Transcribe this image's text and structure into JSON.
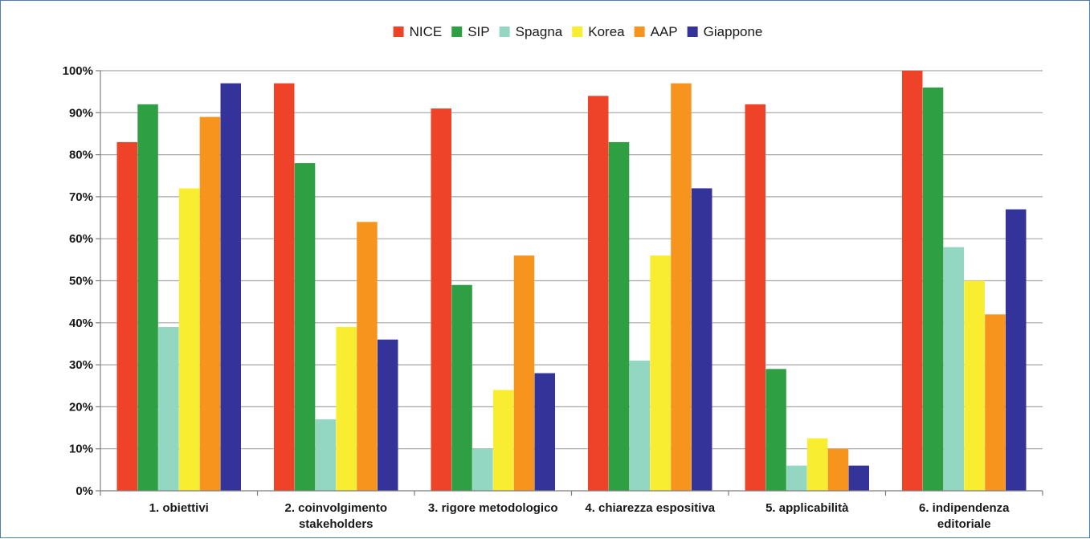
{
  "chart_data": {
    "type": "bar",
    "title": "",
    "xlabel": "",
    "ylabel": "",
    "ylim": [
      0,
      100
    ],
    "y_ticks": [
      "0%",
      "10%",
      "20%",
      "30%",
      "40%",
      "50%",
      "60%",
      "70%",
      "80%",
      "90%",
      "100%"
    ],
    "grid": true,
    "legend_position": "top-center",
    "categories": [
      [
        "1. obiettivi"
      ],
      [
        "2. coinvolgimento",
        "stakeholders"
      ],
      [
        "3. rigore metodologico"
      ],
      [
        "4. chiarezza espositiva"
      ],
      [
        "5. applicabilità"
      ],
      [
        "6. indipendenza",
        "editoriale"
      ]
    ],
    "series": [
      {
        "name": "NICE",
        "color": "#ee4328",
        "values": [
          83,
          97,
          91,
          94,
          92,
          100
        ]
      },
      {
        "name": "SIP",
        "color": "#2ea043",
        "values": [
          92,
          78,
          49,
          83,
          29,
          96
        ]
      },
      {
        "name": "Spagna",
        "color": "#93d6c2",
        "values": [
          39,
          17,
          10,
          31,
          6,
          58
        ]
      },
      {
        "name": "Korea",
        "color": "#f9ed32",
        "values": [
          72,
          39,
          24,
          56,
          12.5,
          50
        ]
      },
      {
        "name": "AAP",
        "color": "#f7941d",
        "values": [
          89,
          64,
          56,
          97,
          10,
          42
        ]
      },
      {
        "name": "Giappone",
        "color": "#33339a",
        "values": [
          97,
          36,
          28,
          72,
          6,
          67
        ]
      }
    ]
  }
}
